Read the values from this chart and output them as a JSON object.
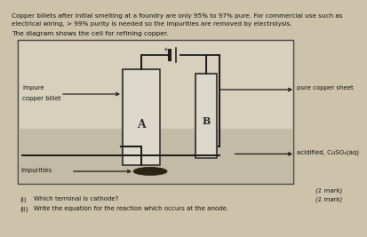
{
  "bg_color": "#cdc3aa",
  "text_header1": "Copper billets after initial smelting at a foundry are only 95% to 97% pure. For commercial use such as",
  "text_header2": "electrical wiring, > 99% purity is needed so the impurities are removed by electrolysis.",
  "text_header3": "The diagram shows the cell for refining copper.",
  "box_face": "#c8bfa8",
  "electrode_face": "#e0dbd0",
  "wire_color": "#1a1a1a",
  "label_A": "A",
  "label_B": "B",
  "label_impure_line1": "Impure",
  "label_impure_line2": "copper billet",
  "label_pure": "pure copper sheet",
  "label_solution": "acidified, CuSO₄(aq)",
  "label_impurities": "Impurities",
  "q1_num": "(i)",
  "q1_text": "Which terminal is cathode?",
  "q1_mark": "(1 mark)",
  "q2_num": "(ii)",
  "q2_text": "Write the equation for the reaction which occurs at the anode.",
  "mark1": "(1 mark)"
}
